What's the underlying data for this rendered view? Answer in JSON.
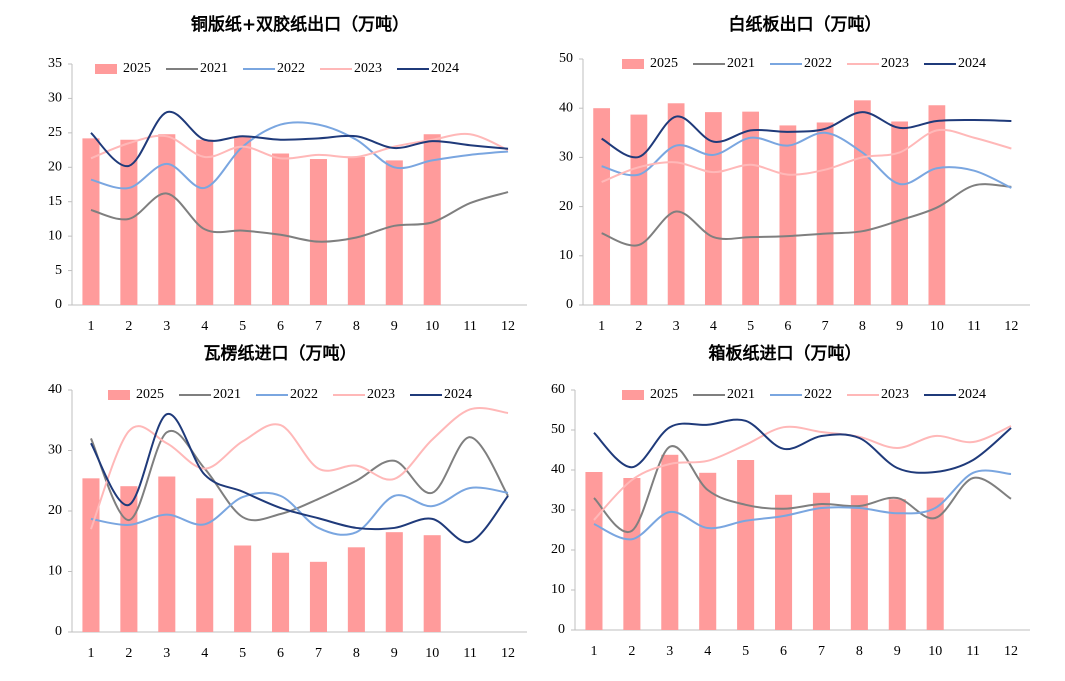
{
  "chart_data": [
    {
      "type": "combo",
      "title": "铜版纸+双胶纸出口（万吨）",
      "categories": [
        "1",
        "2",
        "3",
        "4",
        "5",
        "6",
        "7",
        "8",
        "9",
        "10",
        "11",
        "12"
      ],
      "ylim": [
        0,
        35
      ],
      "yticks": [
        0,
        5,
        10,
        15,
        20,
        25,
        30,
        35
      ],
      "series": [
        {
          "name": "2025",
          "type": "bar",
          "color": "#ff9b9b",
          "values": [
            24.2,
            24,
            24.8,
            24,
            24.5,
            22,
            21.2,
            21.5,
            21,
            24.8,
            null,
            null
          ]
        },
        {
          "name": "2021",
          "type": "line",
          "color": "#7f7f7f",
          "values": [
            13.8,
            12.5,
            16.2,
            11,
            10.8,
            10.2,
            9.2,
            9.8,
            11.5,
            12,
            14.8,
            16.4
          ]
        },
        {
          "name": "2022",
          "type": "line",
          "color": "#7aa6e0",
          "values": [
            18.2,
            17,
            20.5,
            17,
            23,
            26.2,
            26.2,
            24,
            20,
            21,
            21.8,
            22.3
          ]
        },
        {
          "name": "2023",
          "type": "line",
          "color": "#ffb8b8",
          "values": [
            21.3,
            23.5,
            24.5,
            21.5,
            23,
            21.3,
            21.8,
            21.5,
            23,
            24,
            24.8,
            22.5
          ]
        },
        {
          "name": "2024",
          "type": "line",
          "color": "#1f3a7a",
          "values": [
            25,
            20.2,
            28,
            24,
            24.5,
            24,
            24.2,
            24.5,
            22.8,
            23.8,
            23.2,
            22.7
          ]
        }
      ]
    },
    {
      "type": "combo",
      "title": "白纸板出口（万吨）",
      "categories": [
        "1",
        "2",
        "3",
        "4",
        "5",
        "6",
        "7",
        "8",
        "9",
        "10",
        "11",
        "12"
      ],
      "ylim": [
        0,
        50
      ],
      "yticks": [
        0,
        10,
        20,
        30,
        40,
        50
      ],
      "series": [
        {
          "name": "2025",
          "type": "bar",
          "color": "#ff9b9b",
          "values": [
            40,
            38.7,
            41,
            39.2,
            39.3,
            36.5,
            37.1,
            41.6,
            37.3,
            40.6,
            null,
            null
          ]
        },
        {
          "name": "2021",
          "type": "line",
          "color": "#7f7f7f",
          "values": [
            14.6,
            12.2,
            19,
            13.8,
            13.8,
            14,
            14.5,
            15,
            17.2,
            19.8,
            24.3,
            24
          ]
        },
        {
          "name": "2022",
          "type": "line",
          "color": "#7aa6e0",
          "values": [
            28.2,
            26.5,
            32.4,
            30.5,
            34,
            32.4,
            35,
            31,
            24.6,
            27.8,
            27.3,
            23.8
          ]
        },
        {
          "name": "2023",
          "type": "line",
          "color": "#ffb8b8",
          "values": [
            25,
            28,
            29,
            27,
            28.5,
            26.5,
            27.5,
            30,
            31,
            35.5,
            34,
            31.8
          ]
        },
        {
          "name": "2024",
          "type": "line",
          "color": "#1f3a7a",
          "values": [
            33.8,
            30.1,
            38.3,
            33.2,
            35.5,
            35.2,
            35.8,
            39.2,
            36,
            37.4,
            37.6,
            37.4
          ]
        }
      ]
    },
    {
      "type": "combo",
      "title": "瓦楞纸进口（万吨）",
      "categories": [
        "1",
        "2",
        "3",
        "4",
        "5",
        "6",
        "7",
        "8",
        "9",
        "10",
        "11",
        "12"
      ],
      "ylim": [
        0,
        40
      ],
      "yticks": [
        0,
        10,
        20,
        30,
        40
      ],
      "series": [
        {
          "name": "2025",
          "type": "bar",
          "color": "#ff9b9b",
          "values": [
            25.4,
            24.1,
            25.7,
            22.1,
            14.3,
            13.1,
            11.6,
            14,
            16.5,
            16,
            null,
            null
          ]
        },
        {
          "name": "2021",
          "type": "line",
          "color": "#7f7f7f",
          "values": [
            32,
            18.5,
            33,
            27,
            19,
            19.5,
            22,
            25,
            28.3,
            23,
            32.2,
            22.5
          ]
        },
        {
          "name": "2022",
          "type": "line",
          "color": "#7aa6e0",
          "values": [
            18.7,
            17.7,
            19.4,
            17.8,
            22.3,
            22.5,
            17.2,
            16.5,
            22.5,
            20.8,
            23.8,
            23
          ]
        },
        {
          "name": "2023",
          "type": "line",
          "color": "#ffb8b8",
          "values": [
            17,
            33.2,
            31.2,
            27,
            31.5,
            34.2,
            27,
            27.5,
            25.3,
            31.8,
            36.8,
            36.2
          ]
        },
        {
          "name": "2024",
          "type": "line",
          "color": "#1f3a7a",
          "values": [
            31.2,
            21,
            36,
            26,
            23.2,
            20.5,
            18.8,
            17.2,
            17.2,
            18.7,
            14.9,
            22.5
          ]
        }
      ]
    },
    {
      "type": "combo",
      "title": "箱板纸进口（万吨）",
      "categories": [
        "1",
        "2",
        "3",
        "4",
        "5",
        "6",
        "7",
        "8",
        "9",
        "10",
        "11",
        "12"
      ],
      "ylim": [
        0,
        60
      ],
      "yticks": [
        0,
        10,
        20,
        30,
        40,
        50,
        60
      ],
      "series": [
        {
          "name": "2025",
          "type": "bar",
          "color": "#ff9b9b",
          "values": [
            39.5,
            38,
            43.8,
            39.3,
            42.5,
            33.8,
            34.3,
            33.7,
            32.7,
            33.1,
            null,
            null
          ]
        },
        {
          "name": "2021",
          "type": "line",
          "color": "#7f7f7f",
          "values": [
            33,
            24.8,
            45.8,
            35,
            31.3,
            30.3,
            31.5,
            31,
            33,
            28,
            38,
            32.8
          ]
        },
        {
          "name": "2022",
          "type": "line",
          "color": "#7aa6e0",
          "values": [
            26.5,
            22.7,
            29.5,
            25.5,
            27.3,
            28.5,
            30.5,
            30.5,
            29.2,
            30.5,
            39.3,
            39
          ]
        },
        {
          "name": "2023",
          "type": "line",
          "color": "#ffb8b8",
          "values": [
            27.5,
            37.5,
            41.5,
            42.3,
            46.3,
            50.7,
            49.5,
            48.3,
            45.5,
            48.5,
            47,
            51
          ]
        },
        {
          "name": "2024",
          "type": "line",
          "color": "#1f3a7a",
          "values": [
            49.3,
            40.7,
            50.7,
            51.3,
            52.3,
            45.3,
            48.5,
            48,
            40.5,
            39.5,
            42.5,
            50.5
          ]
        }
      ]
    }
  ]
}
